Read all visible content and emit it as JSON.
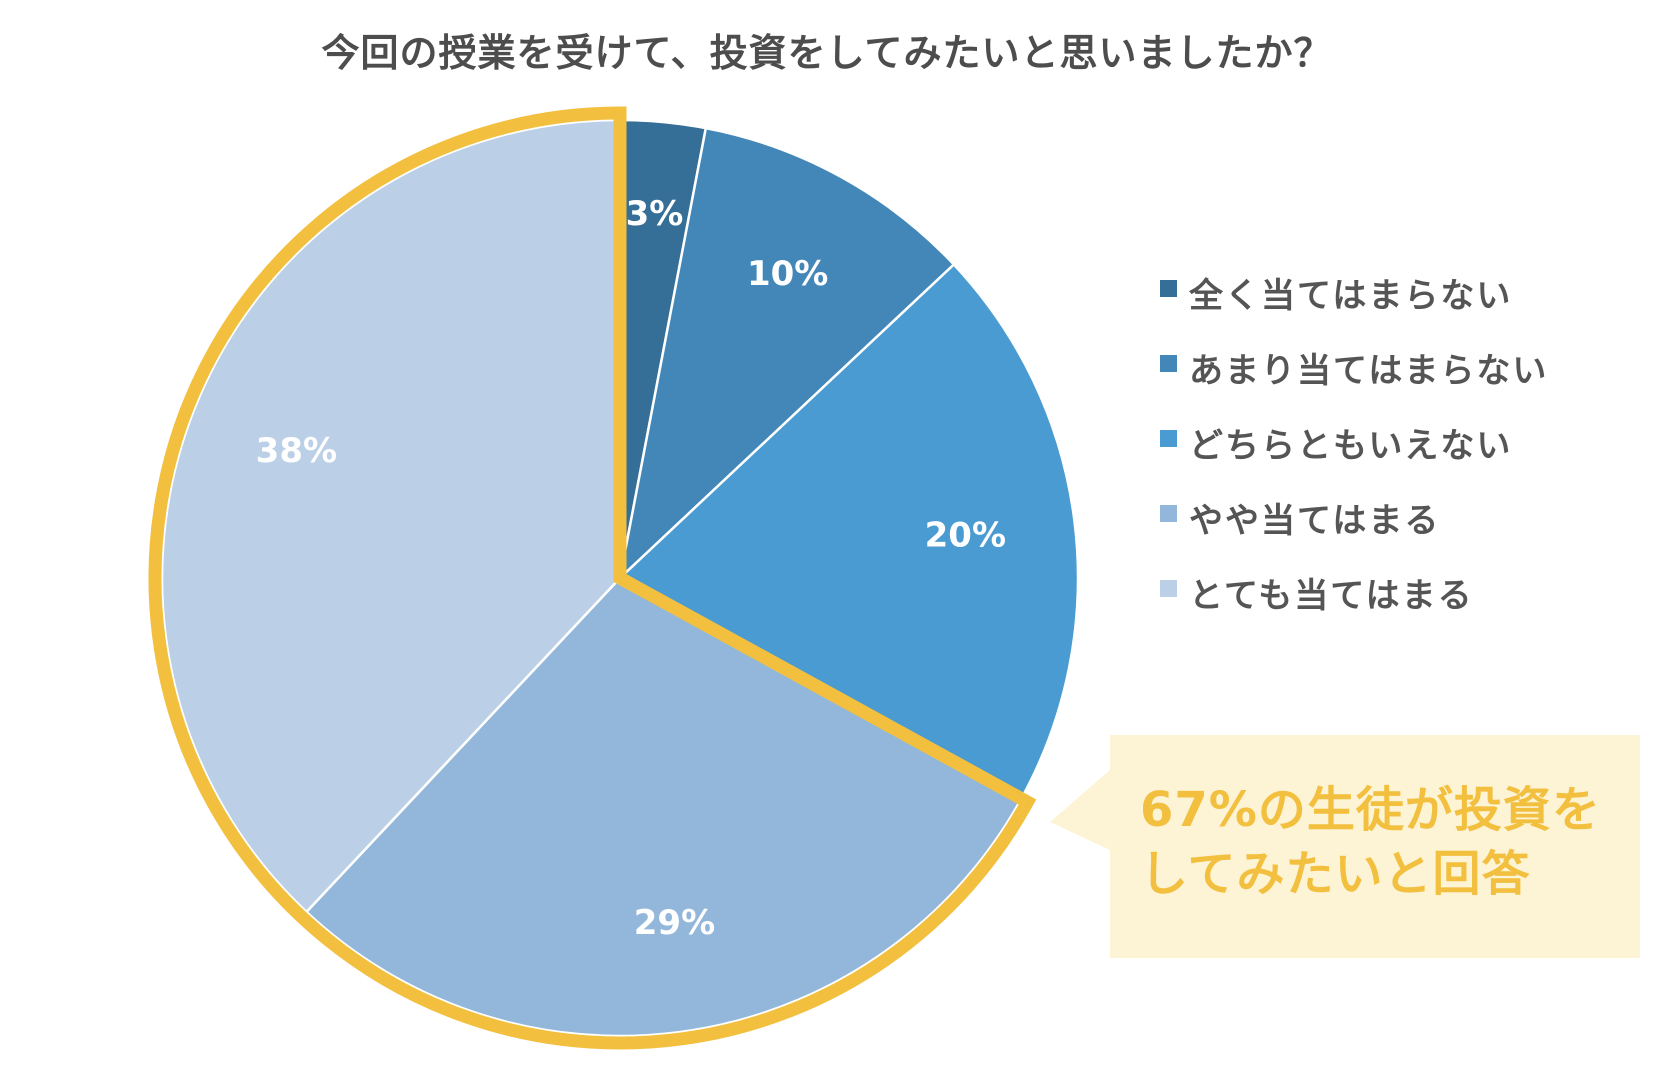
{
  "chart_data": {
    "type": "pie",
    "title": "今回の授業を受けて、投資をしてみたいと思いましたか？",
    "slices": [
      {
        "name": "全く当てはまらない",
        "value": 3,
        "label": "3%",
        "color": "#356e96"
      },
      {
        "name": "あまり当てはまらない",
        "value": 10,
        "label": "10%",
        "color": "#4287b8"
      },
      {
        "name": "どちらともいえない",
        "value": 20,
        "label": "20%",
        "color": "#4a9bd1"
      },
      {
        "name": "やや当てはまる",
        "value": 29,
        "label": "29%",
        "color": "#93b7da"
      },
      {
        "name": "とても当てはまる",
        "value": 38,
        "label": "38%",
        "color": "#bbd0e6"
      }
    ],
    "legend_position": "right",
    "start_angle": "12 o'clock",
    "direction": "clockwise",
    "highlight": {
      "slices": [
        "やや当てはまる",
        "とても当てはまる"
      ],
      "outline_color": "#f2c03e"
    }
  },
  "callout": {
    "lines": [
      "67%の生徒が投資を",
      "してみたいと回答"
    ],
    "text_color": "#f2c03e",
    "background": "#fdf3d5"
  }
}
